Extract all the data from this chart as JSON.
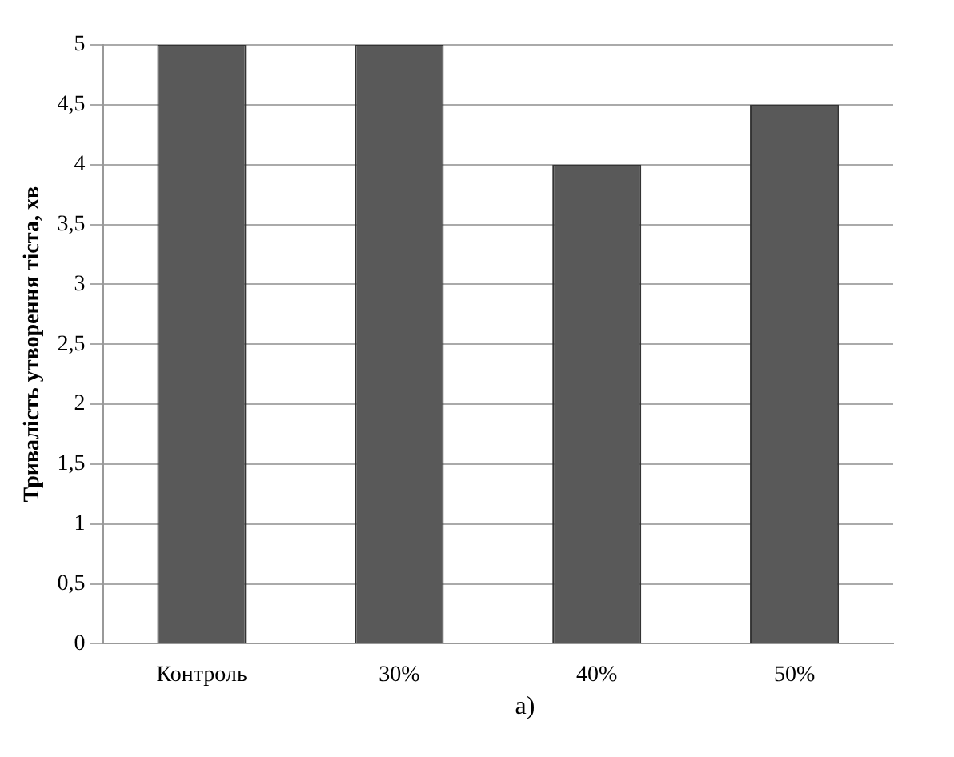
{
  "chart_data": {
    "type": "bar",
    "ylabel": "Тривалість утворення тіста, хв",
    "categories": [
      "Контроль",
      "30%",
      "40%",
      "50%"
    ],
    "values": [
      5,
      5,
      4,
      4.5
    ],
    "color": "#595959",
    "ylim": [
      0,
      5
    ],
    "yticks": [
      0,
      {
        "value": 0.5,
        "label": "0,5"
      },
      1,
      {
        "value": 1.5,
        "label": "1,5"
      },
      2,
      {
        "value": 2.5,
        "label": "2,5"
      },
      3,
      {
        "value": 3.5,
        "label": "3,5"
      },
      4,
      {
        "value": 4.5,
        "label": "4,5"
      },
      5
    ],
    "grid": "y",
    "annotations": [
      "а)"
    ]
  }
}
